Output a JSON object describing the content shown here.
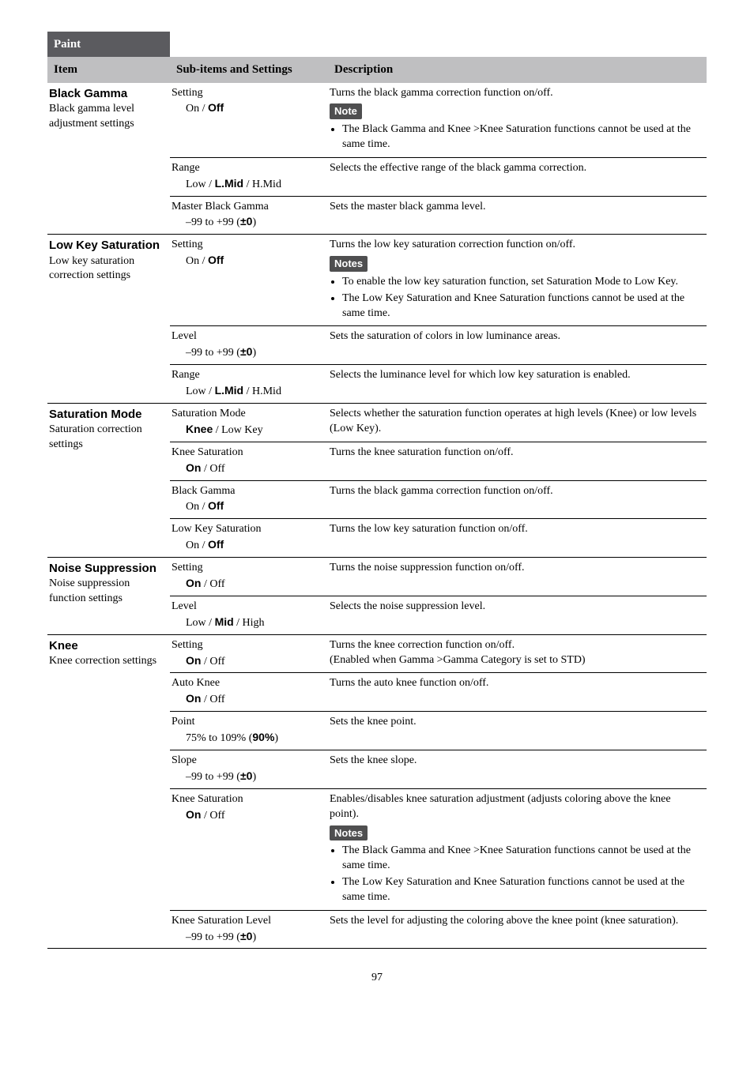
{
  "page_number": "97",
  "headers": {
    "paint": "Paint",
    "item": "Item",
    "sub": "Sub-items and Settings",
    "desc": "Description"
  },
  "labels": {
    "note": "Note",
    "notes": "Notes"
  },
  "rows": {
    "bg": {
      "title": "Black Gamma",
      "subtitle": "Black gamma level adjustment settings",
      "setting_name": "Setting",
      "setting_opts_html": "On / <span class=\"b\">Off</span>",
      "setting_desc": "Turns the black gamma correction function on/off.",
      "setting_bullets": [
        "The Black Gamma and Knee >Knee Saturation functions cannot be used at the same time."
      ],
      "range_name": "Range",
      "range_opts_html": "Low / <span class=\"b\">L.Mid</span> / H.Mid",
      "range_desc": "Selects the effective range of the black gamma correction.",
      "mbg_name": "Master Black Gamma",
      "mbg_opts_html": "–99 to +99 (<span class=\"b\">±0</span>)",
      "mbg_desc": "Sets the master black gamma level."
    },
    "lk": {
      "title": "Low Key Saturation",
      "subtitle": "Low key saturation correction settings",
      "setting_name": "Setting",
      "setting_opts_html": "On / <span class=\"b\">Off</span>",
      "setting_desc": "Turns the low key saturation correction function on/off.",
      "setting_bullets": [
        "To enable the low key saturation function, set Saturation Mode to Low Key.",
        "The Low Key Saturation and Knee Saturation functions cannot be used at the same time."
      ],
      "level_name": "Level",
      "level_opts_html": "–99 to +99 (<span class=\"b\">±0</span>)",
      "level_desc": "Sets the saturation of colors in low luminance areas.",
      "range_name": "Range",
      "range_opts_html": "Low / <span class=\"b\">L.Mid</span> / H.Mid",
      "range_desc": "Selects the luminance level for which low key saturation is enabled."
    },
    "sm": {
      "title": "Saturation Mode",
      "subtitle": "Saturation correction settings",
      "mode_name": "Saturation Mode",
      "mode_opts_html": "<span class=\"b\">Knee</span> / Low Key",
      "mode_desc": "Selects whether the saturation function operates at high levels (Knee) or low levels (Low Key).",
      "ksat_name": "Knee Saturation",
      "ksat_opts_html": "<span class=\"b\">On</span> / Off",
      "ksat_desc": "Turns the knee saturation function on/off.",
      "bgamma_name": "Black Gamma",
      "bgamma_opts_html": "On / <span class=\"b\">Off</span>",
      "bgamma_desc": "Turns the black gamma correction function on/off.",
      "lks_name": "Low Key Saturation",
      "lks_opts_html": "On / <span class=\"b\">Off</span>",
      "lks_desc": "Turns the low key saturation function on/off."
    },
    "ns": {
      "title": "Noise Suppression",
      "subtitle": "Noise suppression function settings",
      "setting_name": "Setting",
      "setting_opts_html": "<span class=\"b\">On</span> / Off",
      "setting_desc": "Turns the noise suppression function on/off.",
      "level_name": "Level",
      "level_opts_html": "Low / <span class=\"b\">Mid</span> / High",
      "level_desc": "Selects the noise suppression level."
    },
    "kn": {
      "title": "Knee",
      "subtitle": "Knee correction settings",
      "setting_name": "Setting",
      "setting_opts_html": "<span class=\"b\">On</span> / Off",
      "setting_desc": "Turns the knee correction function on/off.",
      "setting_desc2": "(Enabled when Gamma >Gamma Category is set to STD)",
      "auto_name": "Auto Knee",
      "auto_opts_html": "<span class=\"b\">On</span> / Off",
      "auto_desc": "Turns the auto knee function on/off.",
      "point_name": "Point",
      "point_opts_html": "75% to 109% (<span class=\"b\">90%</span>)",
      "point_desc": "Sets the knee point.",
      "slope_name": "Slope",
      "slope_opts_html": "–99 to +99 (<span class=\"b\">±0</span>)",
      "slope_desc": "Sets the knee slope.",
      "ksat_name": "Knee Saturation",
      "ksat_opts_html": "<span class=\"b\">On</span> / Off",
      "ksat_desc": "Enables/disables knee saturation adjustment (adjusts coloring above the knee point).",
      "ksat_bullets": [
        "The Black Gamma and Knee >Knee Saturation functions cannot be used at the same time.",
        "The Low Key Saturation and Knee Saturation functions cannot be used at the same time."
      ],
      "ksl_name": "Knee Saturation Level",
      "ksl_opts_html": "–99 to +99 (<span class=\"b\">±0</span>)",
      "ksl_desc": "Sets the level for adjusting the coloring above the knee point (knee saturation)."
    }
  }
}
